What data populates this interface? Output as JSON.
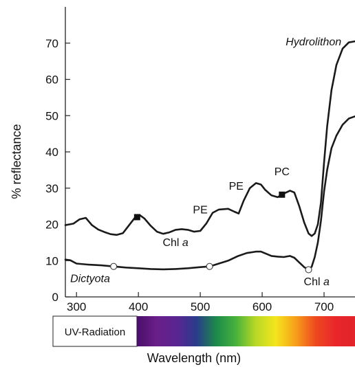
{
  "chart_data": {
    "type": "line",
    "ylabel": "% reflectance",
    "xlabel": "Wavelength (nm)",
    "xlim": [
      282,
      750
    ],
    "ylim": [
      0,
      80
    ],
    "x_ticks": [
      300,
      400,
      500,
      600,
      700
    ],
    "y_ticks": [
      0,
      10,
      20,
      30,
      40,
      50,
      60,
      70
    ],
    "grid": false,
    "series": [
      {
        "name": "Hydrolithon",
        "color": "#1a1a1a",
        "points": [
          [
            282,
            19.8
          ],
          [
            295,
            20.2
          ],
          [
            305,
            21.4
          ],
          [
            315,
            21.8
          ],
          [
            325,
            19.8
          ],
          [
            335,
            18.6
          ],
          [
            345,
            17.9
          ],
          [
            355,
            17.3
          ],
          [
            365,
            17.1
          ],
          [
            375,
            17.6
          ],
          [
            385,
            19.8
          ],
          [
            395,
            22.0
          ],
          [
            402,
            22.6
          ],
          [
            410,
            21.6
          ],
          [
            420,
            19.6
          ],
          [
            430,
            18.0
          ],
          [
            440,
            17.4
          ],
          [
            450,
            17.8
          ],
          [
            460,
            18.5
          ],
          [
            470,
            18.7
          ],
          [
            480,
            18.5
          ],
          [
            490,
            18.0
          ],
          [
            500,
            18.2
          ],
          [
            510,
            20.3
          ],
          [
            520,
            23.2
          ],
          [
            530,
            24.1
          ],
          [
            545,
            24.3
          ],
          [
            555,
            23.5
          ],
          [
            562,
            23.0
          ],
          [
            570,
            26.5
          ],
          [
            580,
            30.0
          ],
          [
            590,
            31.4
          ],
          [
            598,
            31.0
          ],
          [
            605,
            29.5
          ],
          [
            615,
            28.0
          ],
          [
            625,
            27.5
          ],
          [
            635,
            28.5
          ],
          [
            645,
            29.3
          ],
          [
            652,
            28.8
          ],
          [
            660,
            25.0
          ],
          [
            668,
            20.5
          ],
          [
            675,
            17.5
          ],
          [
            680,
            16.8
          ],
          [
            685,
            17.5
          ],
          [
            690,
            20.0
          ],
          [
            695,
            26.0
          ],
          [
            700,
            37.0
          ],
          [
            705,
            47.0
          ],
          [
            712,
            57.0
          ],
          [
            720,
            64.0
          ],
          [
            730,
            68.5
          ],
          [
            740,
            70.2
          ],
          [
            750,
            70.5
          ]
        ],
        "markers": [
          {
            "x": 398,
            "y": 22.0,
            "style": "filled-square"
          },
          {
            "x": 632,
            "y": 28.2,
            "style": "filled-square"
          }
        ]
      },
      {
        "name": "Dictyota",
        "color": "#1a1a1a",
        "points": [
          [
            282,
            10.3
          ],
          [
            290,
            10.1
          ],
          [
            300,
            9.2
          ],
          [
            320,
            8.9
          ],
          [
            340,
            8.7
          ],
          [
            360,
            8.4
          ],
          [
            380,
            8.1
          ],
          [
            400,
            7.9
          ],
          [
            420,
            7.7
          ],
          [
            440,
            7.6
          ],
          [
            460,
            7.7
          ],
          [
            480,
            7.9
          ],
          [
            500,
            8.2
          ],
          [
            515,
            8.4
          ],
          [
            530,
            9.2
          ],
          [
            545,
            10.0
          ],
          [
            560,
            11.2
          ],
          [
            575,
            12.1
          ],
          [
            590,
            12.5
          ],
          [
            598,
            12.5
          ],
          [
            605,
            12.0
          ],
          [
            615,
            11.3
          ],
          [
            625,
            11.1
          ],
          [
            635,
            11.0
          ],
          [
            645,
            11.3
          ],
          [
            652,
            10.8
          ],
          [
            660,
            9.5
          ],
          [
            668,
            8.2
          ],
          [
            675,
            7.5
          ],
          [
            680,
            8.3
          ],
          [
            685,
            11.0
          ],
          [
            690,
            15.0
          ],
          [
            695,
            21.0
          ],
          [
            700,
            29.0
          ],
          [
            705,
            35.0
          ],
          [
            712,
            41.0
          ],
          [
            720,
            44.5
          ],
          [
            730,
            47.5
          ],
          [
            740,
            49.2
          ],
          [
            750,
            49.8
          ]
        ],
        "markers": [
          {
            "x": 360,
            "y": 8.4,
            "style": "open-circle"
          },
          {
            "x": 515,
            "y": 8.4,
            "style": "open-circle"
          },
          {
            "x": 675,
            "y": 7.5,
            "style": "open-circle"
          }
        ]
      }
    ],
    "annotations": [
      {
        "id": "chl-a-upper",
        "text": "Chl a",
        "x": 460,
        "y": 14.0,
        "style": "normal"
      },
      {
        "id": "pe-1",
        "text": "PE",
        "x": 500,
        "y": 23.0,
        "style": "normal"
      },
      {
        "id": "pe-2",
        "text": "PE",
        "x": 558,
        "y": 29.6,
        "style": "normal"
      },
      {
        "id": "pc",
        "text": "PC",
        "x": 632,
        "y": 33.6,
        "style": "normal"
      },
      {
        "id": "chl-a-lower",
        "text": "Chl a",
        "x": 688,
        "y": 3.2,
        "style": "normal"
      },
      {
        "id": "hydrolithon-label",
        "text": "Hydrolithon",
        "x": 683,
        "y": 69.4,
        "style": "italic"
      },
      {
        "id": "dictyota-label",
        "text": "Dictyota",
        "x": 322,
        "y": 4.1,
        "style": "italic"
      }
    ]
  },
  "spectrum_bar": {
    "label": "UV-Radiation",
    "colors": [
      "#4a0f6a",
      "#6a1f8a",
      "#5a2590",
      "#2a3c8c",
      "#1c8a4a",
      "#48b23c",
      "#b8d826",
      "#f4e61c",
      "#f6a01a",
      "#ee4a1e",
      "#e8262a",
      "#e3242b"
    ]
  }
}
